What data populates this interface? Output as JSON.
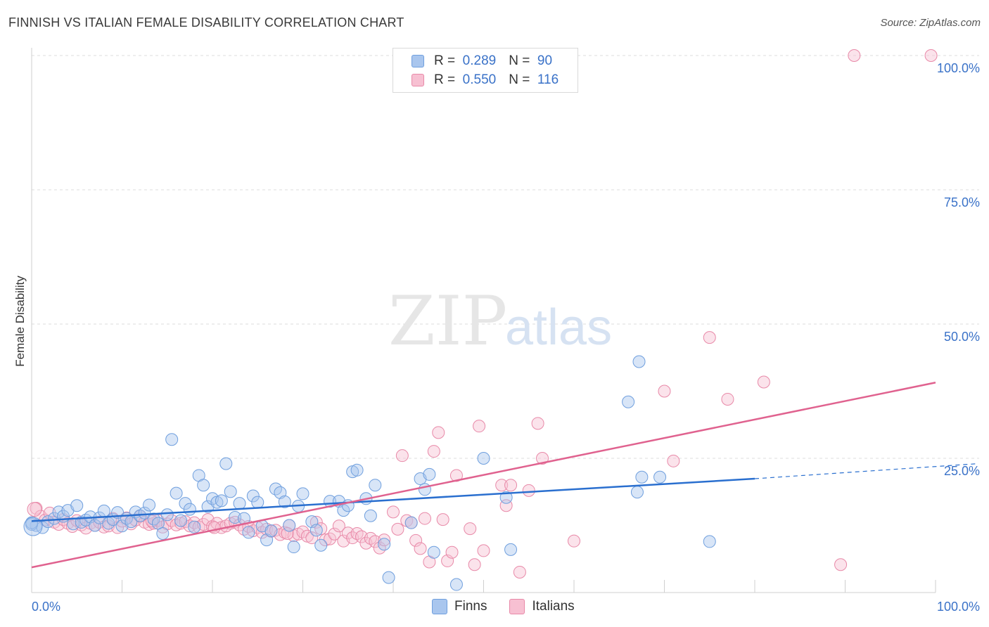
{
  "title": "FINNISH VS ITALIAN FEMALE DISABILITY CORRELATION CHART",
  "source": "Source: ZipAtlas.com",
  "watermark": {
    "part1": "ZIP",
    "part2": "atlas"
  },
  "legend": {
    "rows": [
      {
        "r_label": "R =",
        "r_value": "0.289",
        "n_label": "N =",
        "n_value": "90",
        "color": "#a9c6ee",
        "border": "#6f9fde"
      },
      {
        "r_label": "R =",
        "r_value": "0.550",
        "n_label": "N =",
        "n_value": "116",
        "color": "#f7c0d2",
        "border": "#e889a8"
      }
    ]
  },
  "bottom_legend": [
    {
      "label": "Finns",
      "color": "#a9c6ee",
      "border": "#6f9fde"
    },
    {
      "label": "Italians",
      "color": "#f7c0d2",
      "border": "#e889a8"
    }
  ],
  "colors": {
    "finns_line": "#2a6fcf",
    "italians_line": "#e0628f",
    "finns_fill": "#a9c6ee",
    "italians_fill": "#f7c0d2"
  },
  "chart_data": {
    "type": "scatter",
    "title": "FINNISH VS ITALIAN FEMALE DISABILITY CORRELATION CHART",
    "xlabel": "",
    "ylabel": "Female Disability",
    "xlim": [
      0,
      100
    ],
    "ylim": [
      0,
      100
    ],
    "x_tick_labels": [
      "0.0%",
      "100.0%"
    ],
    "y_ticks": [
      25,
      50,
      75,
      100
    ],
    "y_tick_labels": [
      "25.0%",
      "50.0%",
      "75.0%",
      "100.0%"
    ],
    "grid": true,
    "series": [
      {
        "name": "Finns",
        "r": 0.289,
        "n": 90,
        "trend": {
          "x0": 0,
          "y0": 13.3,
          "x1": 80,
          "y1": 21.2,
          "dash_to_x": 100,
          "dash_to_y": 23.3
        },
        "points": [
          [
            0.5,
            12.5
          ],
          [
            1.2,
            12.1
          ],
          [
            1.8,
            13.2
          ],
          [
            2.5,
            13.8
          ],
          [
            3,
            15
          ],
          [
            3.5,
            14.2
          ],
          [
            4,
            15.3
          ],
          [
            4.6,
            12.8
          ],
          [
            5,
            16.2
          ],
          [
            5.5,
            13.1
          ],
          [
            6,
            13.5
          ],
          [
            6.5,
            14.1
          ],
          [
            7,
            12.5
          ],
          [
            7.5,
            13.9
          ],
          [
            8,
            15.2
          ],
          [
            8.5,
            12.9
          ],
          [
            9,
            13.6
          ],
          [
            9.5,
            14.9
          ],
          [
            10,
            12.4
          ],
          [
            10.5,
            13.8
          ],
          [
            11,
            13.2
          ],
          [
            11.5,
            15
          ],
          [
            12,
            14.3
          ],
          [
            12.5,
            14.8
          ],
          [
            13,
            16.3
          ],
          [
            13.5,
            13.7
          ],
          [
            14,
            12.9
          ],
          [
            14.5,
            11
          ],
          [
            15,
            14.5
          ],
          [
            15.5,
            28.5
          ],
          [
            16,
            18.5
          ],
          [
            16.5,
            13.4
          ],
          [
            17,
            16.6
          ],
          [
            17.5,
            15.5
          ],
          [
            18,
            12.2
          ],
          [
            18.5,
            21.8
          ],
          [
            19,
            20
          ],
          [
            19.5,
            16
          ],
          [
            20,
            17.5
          ],
          [
            20.5,
            16.8
          ],
          [
            21,
            17.1
          ],
          [
            21.5,
            24
          ],
          [
            22,
            18.8
          ],
          [
            22.5,
            14
          ],
          [
            23,
            16.6
          ],
          [
            23.5,
            13.8
          ],
          [
            24,
            11.2
          ],
          [
            24.5,
            18
          ],
          [
            25,
            16.8
          ],
          [
            25.5,
            12.4
          ],
          [
            26,
            9.8
          ],
          [
            26.5,
            11.5
          ],
          [
            27,
            19.3
          ],
          [
            27.5,
            18.6
          ],
          [
            28,
            16.9
          ],
          [
            28.5,
            12.5
          ],
          [
            29,
            8.5
          ],
          [
            29.5,
            16.1
          ],
          [
            30,
            18.4
          ],
          [
            31,
            13.2
          ],
          [
            31.5,
            11.6
          ],
          [
            32,
            8.8
          ],
          [
            33,
            17
          ],
          [
            34,
            17
          ],
          [
            34.5,
            15.3
          ],
          [
            35,
            16.2
          ],
          [
            35.5,
            22.5
          ],
          [
            36,
            22.8
          ],
          [
            37,
            17.5
          ],
          [
            37.5,
            14.3
          ],
          [
            38,
            20
          ],
          [
            39,
            9
          ],
          [
            39.5,
            2.8
          ],
          [
            42,
            13
          ],
          [
            43,
            21.2
          ],
          [
            44,
            22
          ],
          [
            43.5,
            19.2
          ],
          [
            44.5,
            7.5
          ],
          [
            47,
            1.5
          ],
          [
            50,
            25
          ],
          [
            52.5,
            17.7
          ],
          [
            53,
            8
          ],
          [
            66,
            35.5
          ],
          [
            67.5,
            21.5
          ],
          [
            67,
            18.7
          ],
          [
            69.5,
            21.5
          ],
          [
            75,
            9.5
          ],
          [
            67.2,
            43
          ],
          [
            0,
            12.7
          ],
          [
            0,
            13
          ]
        ]
      },
      {
        "name": "Italians",
        "r": 0.55,
        "n": 116,
        "trend": {
          "x0": 0,
          "y0": 4.7,
          "x1": 100,
          "y1": 39.1
        },
        "points": [
          [
            0.5,
            15.7
          ],
          [
            1,
            14.2
          ],
          [
            1.5,
            13.5
          ],
          [
            2,
            14.8
          ],
          [
            2.5,
            13.1
          ],
          [
            3,
            12.7
          ],
          [
            3.5,
            13.6
          ],
          [
            4,
            12.9
          ],
          [
            4.5,
            12.3
          ],
          [
            5,
            13.4
          ],
          [
            5.5,
            12.6
          ],
          [
            6,
            12
          ],
          [
            6.5,
            12.9
          ],
          [
            7,
            12.5
          ],
          [
            7.5,
            13.1
          ],
          [
            8,
            12.2
          ],
          [
            8.5,
            12.4
          ],
          [
            9,
            13.8
          ],
          [
            9.5,
            12.1
          ],
          [
            10,
            13.3
          ],
          [
            10.5,
            13.9
          ],
          [
            11,
            12.8
          ],
          [
            11.5,
            13.5
          ],
          [
            12,
            14.2
          ],
          [
            12.5,
            13.1
          ],
          [
            13,
            12.7
          ],
          [
            13.5,
            12.9
          ],
          [
            14,
            13.4
          ],
          [
            14.5,
            12.2
          ],
          [
            15,
            12.8
          ],
          [
            15.5,
            13.4
          ],
          [
            16,
            12.6
          ],
          [
            16.5,
            12.9
          ],
          [
            17,
            13.2
          ],
          [
            17.5,
            12.4
          ],
          [
            18,
            13
          ],
          [
            18.5,
            12.2
          ],
          [
            19,
            12.7
          ],
          [
            19.5,
            13.6
          ],
          [
            20,
            12.3
          ],
          [
            20.5,
            12.9
          ],
          [
            21,
            12.1
          ],
          [
            21.5,
            12.4
          ],
          [
            22,
            12.9
          ],
          [
            22.5,
            13.1
          ],
          [
            23,
            12.6
          ],
          [
            23.5,
            11.8
          ],
          [
            24,
            12.3
          ],
          [
            24.5,
            11.5
          ],
          [
            25,
            12.1
          ],
          [
            25.5,
            11.2
          ],
          [
            26,
            11.8
          ],
          [
            26.5,
            11.4
          ],
          [
            27,
            11.6
          ],
          [
            27.5,
            10.8
          ],
          [
            28,
            11.2
          ],
          [
            28.5,
            12.5
          ],
          [
            29,
            10.6
          ],
          [
            29.5,
            10.9
          ],
          [
            30,
            11.3
          ],
          [
            30.5,
            10.5
          ],
          [
            31,
            10.2
          ],
          [
            31.5,
            13.1
          ],
          [
            32,
            11.9
          ],
          [
            32.5,
            9.8
          ],
          [
            33,
            10
          ],
          [
            33.5,
            10.9
          ],
          [
            34,
            12.4
          ],
          [
            34.5,
            9.6
          ],
          [
            35,
            11.1
          ],
          [
            35.5,
            10.2
          ],
          [
            36,
            11
          ],
          [
            36.5,
            10.4
          ],
          [
            37,
            9.2
          ],
          [
            37.5,
            10.1
          ],
          [
            38,
            9.5
          ],
          [
            38.5,
            8.3
          ],
          [
            39,
            9.8
          ],
          [
            40,
            15
          ],
          [
            40.5,
            11.8
          ],
          [
            41,
            25.5
          ],
          [
            41.5,
            13.4
          ],
          [
            42,
            13
          ],
          [
            42.5,
            9.7
          ],
          [
            43,
            8.2
          ],
          [
            43.5,
            13.8
          ],
          [
            44,
            5.7
          ],
          [
            44.5,
            26.3
          ],
          [
            45,
            29.8
          ],
          [
            45.5,
            13.6
          ],
          [
            46,
            5.9
          ],
          [
            46.5,
            7.5
          ],
          [
            47,
            21.8
          ],
          [
            48.5,
            11.9
          ],
          [
            49,
            5.2
          ],
          [
            49.5,
            31
          ],
          [
            50,
            7.8
          ],
          [
            52,
            20
          ],
          [
            52.5,
            16.2
          ],
          [
            53,
            20
          ],
          [
            54,
            3.8
          ],
          [
            55,
            19
          ],
          [
            56,
            31.5
          ],
          [
            56.5,
            25
          ],
          [
            60,
            9.6
          ],
          [
            70,
            37.5
          ],
          [
            71,
            24.5
          ],
          [
            75,
            47.5
          ],
          [
            77,
            36
          ],
          [
            81,
            39.2
          ],
          [
            91,
            100
          ],
          [
            99.5,
            100
          ],
          [
            89.5,
            5.2
          ],
          [
            13.3,
            13.3
          ],
          [
            28.3,
            11
          ],
          [
            20.2,
            12.1
          ]
        ]
      }
    ]
  }
}
